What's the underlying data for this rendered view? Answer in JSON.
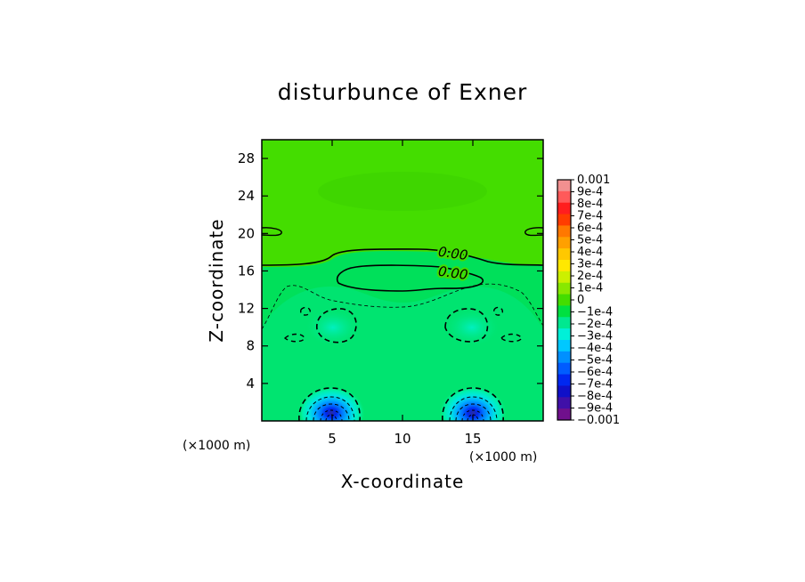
{
  "chart_data": {
    "type": "contour",
    "title": "disturbunce of Exner",
    "xlabel": "X-coordinate",
    "ylabel": "Z-coordinate",
    "xunits": "(×1000 m)",
    "yunits": "(×1000 m)",
    "xlim": [
      0,
      20
    ],
    "ylim": [
      0,
      30
    ],
    "xticks": [
      5,
      10,
      15
    ],
    "yticks": [
      4,
      8,
      12,
      16,
      20,
      24,
      28
    ],
    "contour_labels": [
      "0.00",
      "0.00"
    ],
    "colorbar": {
      "labels": [
        "0.001",
        "9e-4",
        "8e-4",
        "7e-4",
        "6e-4",
        "5e-4",
        "4e-4",
        "3e-4",
        "2e-4",
        "1e-4",
        "0",
        "−1e-4",
        "−2e-4",
        "−3e-4",
        "−4e-4",
        "−5e-4",
        "−6e-4",
        "−7e-4",
        "−8e-4",
        "−9e-4",
        "−0.001"
      ],
      "colors": [
        "#f29090",
        "#ff5a5a",
        "#ff1e1e",
        "#ff3c00",
        "#ff7800",
        "#ffa000",
        "#ffc800",
        "#ffe800",
        "#ccf000",
        "#88e800",
        "#44dd00",
        "#00e040",
        "#00e890",
        "#00f0d8",
        "#00c8ff",
        "#0090ff",
        "#005cff",
        "#0028f0",
        "#1010c8",
        "#4010a8",
        "#70108c"
      ]
    },
    "minima": [
      {
        "x": 5,
        "z": 1
      },
      {
        "x": 15,
        "z": 1
      }
    ]
  }
}
